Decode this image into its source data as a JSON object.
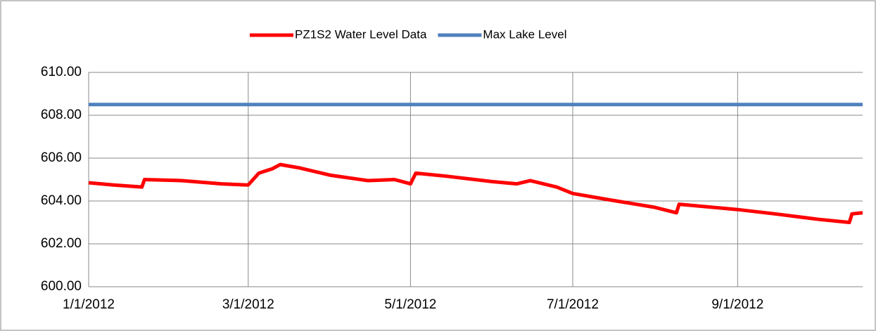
{
  "chart_data": {
    "type": "line",
    "series": [
      {
        "name": "PZ1S2 Water Level Data",
        "color": "#ff0000",
        "x": [
          "2012-01-01",
          "2012-01-10",
          "2012-01-21",
          "2012-01-22",
          "2012-02-05",
          "2012-02-20",
          "2012-02-29",
          "2012-03-01",
          "2012-03-05",
          "2012-03-10",
          "2012-03-13",
          "2012-03-20",
          "2012-04-01",
          "2012-04-15",
          "2012-04-25",
          "2012-05-01",
          "2012-05-03",
          "2012-05-15",
          "2012-06-01",
          "2012-06-10",
          "2012-06-15",
          "2012-06-25",
          "2012-07-01",
          "2012-07-15",
          "2012-08-01",
          "2012-08-09",
          "2012-08-10",
          "2012-09-01",
          "2012-09-15",
          "2012-10-01",
          "2012-10-13",
          "2012-10-14",
          "2012-10-18"
        ],
        "values": [
          604.85,
          604.75,
          604.65,
          605.0,
          604.95,
          604.8,
          604.75,
          604.75,
          605.3,
          605.5,
          605.7,
          605.55,
          605.2,
          604.95,
          605.0,
          604.8,
          605.3,
          605.15,
          604.9,
          604.8,
          604.95,
          604.65,
          604.35,
          604.05,
          603.7,
          603.45,
          603.85,
          603.6,
          603.4,
          603.15,
          603.0,
          603.4,
          603.45
        ]
      },
      {
        "name": "Max Lake Level",
        "color": "#4f81bd",
        "x": [
          "2012-01-01",
          "2012-10-18"
        ],
        "values": [
          608.5,
          608.5
        ]
      }
    ],
    "xlim": [
      "2012-01-01",
      "2012-10-18"
    ],
    "xticks": [
      {
        "value": "2012-01-01",
        "label": "1/1/2012"
      },
      {
        "value": "2012-03-01",
        "label": "3/1/2012"
      },
      {
        "value": "2012-05-01",
        "label": "5/1/2012"
      },
      {
        "value": "2012-07-01",
        "label": "7/1/2012"
      },
      {
        "value": "2012-09-01",
        "label": "9/1/2012"
      }
    ],
    "ylim": [
      600,
      610
    ],
    "yticks": [
      {
        "value": 600,
        "label": "600.00"
      },
      {
        "value": 602,
        "label": "602.00"
      },
      {
        "value": 604,
        "label": "604.00"
      },
      {
        "value": 606,
        "label": "606.00"
      },
      {
        "value": 608,
        "label": "608.00"
      },
      {
        "value": 610,
        "label": "610.00"
      }
    ],
    "grid": true,
    "legend": "top"
  }
}
